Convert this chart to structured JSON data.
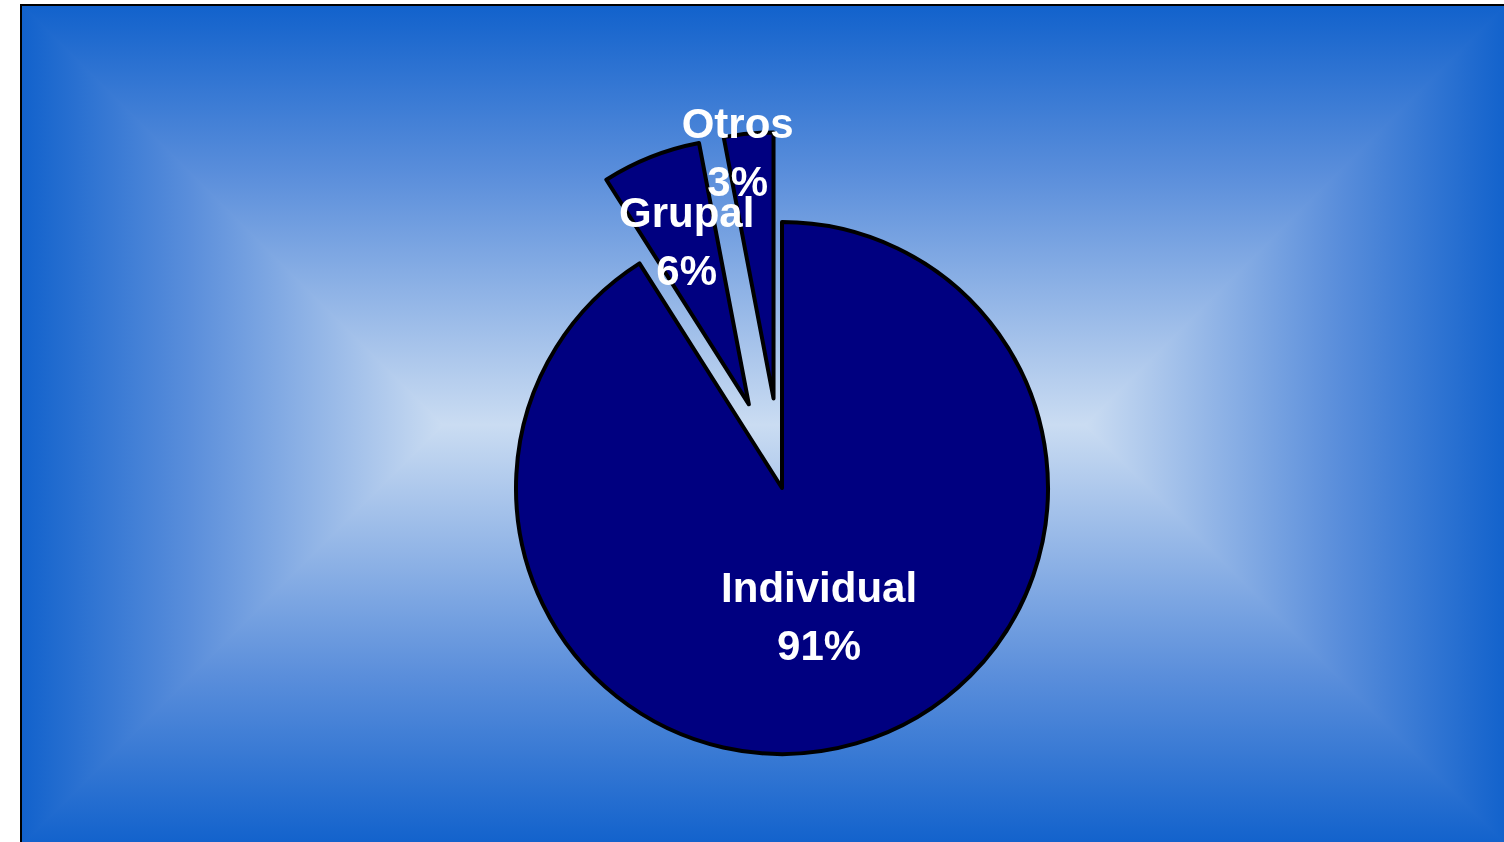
{
  "chart_data": {
    "type": "pie",
    "categories": [
      "Individual",
      "Grupal",
      "Otros"
    ],
    "values": [
      91,
      6,
      3
    ],
    "colors": [
      "#000080",
      "#000080",
      "#000080"
    ],
    "value_labels": [
      "91%",
      "6%",
      "3%"
    ]
  }
}
